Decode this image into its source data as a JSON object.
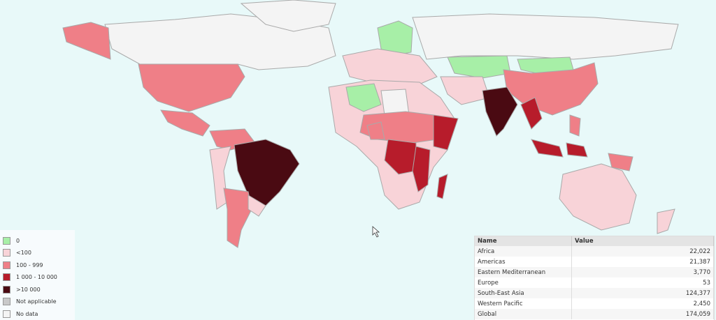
{
  "legend": {
    "items": [
      {
        "label": "0",
        "color": "#a7efa7"
      },
      {
        "label": "<100",
        "color": "#f8d3d8"
      },
      {
        "label": "100 - 999",
        "color": "#ef7f87"
      },
      {
        "label": "1 000 - 10 000",
        "color": "#b71c2b"
      },
      {
        "label": ">10 000",
        "color": "#4a0a12"
      },
      {
        "label": "Not applicable",
        "color": "#c9c9c9"
      },
      {
        "label": "No data",
        "color": "#f4f4f4"
      }
    ]
  },
  "table": {
    "header": [
      "Name",
      "Value"
    ],
    "rows": [
      [
        "Africa",
        "22,022"
      ],
      [
        "Americas",
        "21,387"
      ],
      [
        "Eastern Mediterranean",
        "3,770"
      ],
      [
        "Europe",
        "53"
      ],
      [
        "South-East Asia",
        "124,377"
      ],
      [
        "Western Pacific",
        "2,450"
      ],
      [
        "Global",
        "174,059"
      ]
    ]
  }
}
